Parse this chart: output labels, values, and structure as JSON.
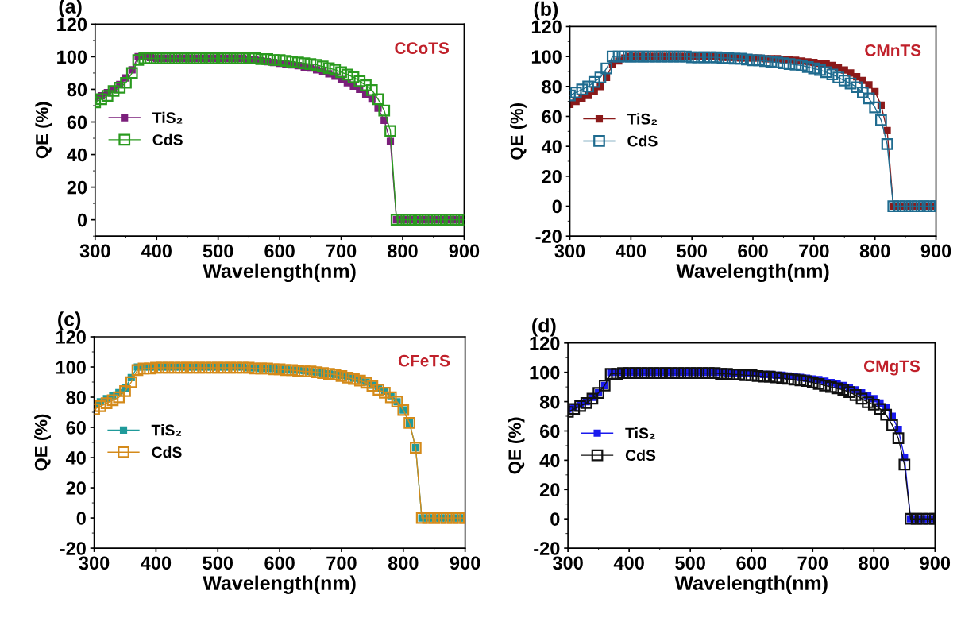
{
  "chart_data": [
    {
      "type": "line",
      "title": "(a)",
      "xlabel": "Wavelength(nm)",
      "ylabel": "QE (%)",
      "annotations": [
        "CCoTS"
      ],
      "x": [
        300,
        310,
        320,
        330,
        340,
        350,
        360,
        370,
        380,
        390,
        400,
        410,
        420,
        430,
        440,
        450,
        460,
        470,
        480,
        490,
        500,
        510,
        520,
        530,
        540,
        550,
        560,
        570,
        580,
        590,
        600,
        610,
        620,
        630,
        640,
        650,
        660,
        670,
        680,
        690,
        700,
        710,
        720,
        730,
        740,
        750,
        760,
        770,
        780,
        790,
        800,
        810,
        820,
        830,
        840,
        850,
        860,
        870,
        880,
        890,
        900
      ],
      "series": [
        {
          "name": "TiS₂",
          "color": "#7b1f7b",
          "values": [
            75,
            76,
            78,
            80,
            83,
            87,
            92,
            100,
            100,
            99.5,
            99,
            99,
            99,
            99,
            99,
            99,
            99,
            99,
            99,
            99,
            99,
            99,
            99,
            99,
            99,
            98.5,
            98,
            97.5,
            97,
            96.5,
            96,
            95.5,
            95,
            94.5,
            93.5,
            93,
            92,
            91,
            89.5,
            88,
            86,
            84,
            82,
            80,
            77,
            74,
            68.5,
            61,
            48,
            0,
            0,
            0,
            0,
            0,
            0,
            0,
            0,
            0,
            0,
            0,
            0
          ]
        },
        {
          "name": "CdS",
          "color": "#2a9a1f",
          "values": [
            72,
            74,
            76,
            79,
            81,
            84,
            90,
            98,
            99,
            99,
            99,
            99,
            99,
            99,
            99,
            99,
            99,
            99,
            99,
            99,
            99,
            99,
            99,
            99,
            99,
            99,
            99,
            98.5,
            98.5,
            98,
            98,
            97.5,
            97,
            96.5,
            96,
            95.5,
            95,
            94,
            93,
            92,
            90.5,
            89,
            87.5,
            85,
            82.5,
            79.5,
            74,
            67,
            54.5,
            0,
            0,
            0,
            0,
            0,
            0,
            0,
            0,
            0,
            0,
            0,
            0
          ]
        }
      ],
      "xlim": [
        300,
        900
      ],
      "xticks": [
        300,
        400,
        500,
        600,
        700,
        800,
        900
      ],
      "ylim": [
        -10,
        120
      ],
      "yticks": [
        0,
        20,
        40,
        60,
        80,
        100,
        120
      ],
      "grid": false,
      "legend": "left",
      "marker": "square",
      "line_style": "solid"
    },
    {
      "type": "line",
      "title": "(b)",
      "xlabel": "Wavelength(nm)",
      "ylabel": "QE (%)",
      "annotations": [
        "CMnTS"
      ],
      "x": [
        300,
        310,
        320,
        330,
        340,
        350,
        360,
        370,
        380,
        390,
        400,
        410,
        420,
        430,
        440,
        450,
        460,
        470,
        480,
        490,
        500,
        510,
        520,
        530,
        540,
        550,
        560,
        570,
        580,
        590,
        600,
        610,
        620,
        630,
        640,
        650,
        660,
        670,
        680,
        690,
        700,
        710,
        720,
        730,
        740,
        750,
        760,
        770,
        780,
        790,
        800,
        810,
        820,
        830,
        840,
        850,
        860,
        870,
        880,
        890,
        900
      ],
      "series": [
        {
          "name": "TiS₂",
          "color": "#8b1a1a",
          "values": [
            68,
            70,
            72,
            74,
            77,
            80,
            86,
            95,
            97,
            99,
            100,
            100,
            100,
            100,
            100,
            100,
            100,
            100,
            100,
            100,
            100,
            100,
            100,
            100,
            100,
            99.5,
            99.5,
            99.5,
            99,
            99,
            99,
            99,
            98.5,
            98.5,
            98.5,
            98,
            98,
            97.5,
            97,
            96.5,
            96,
            95.5,
            95,
            94,
            92.5,
            91,
            89,
            86.5,
            84,
            81,
            76.5,
            67.5,
            50.5,
            0,
            0,
            0,
            0,
            0,
            0,
            0,
            0
          ]
        },
        {
          "name": "CdS",
          "color": "#1f6b8f",
          "values": [
            74,
            76,
            78,
            80,
            83,
            86,
            92,
            100,
            100,
            100,
            100,
            100,
            100,
            100,
            100,
            100,
            100,
            100,
            100,
            100,
            99.5,
            99.5,
            99.5,
            99.5,
            99.5,
            99,
            99,
            98.5,
            98.5,
            98,
            97.5,
            97.5,
            97,
            96.5,
            96,
            95.5,
            95,
            94.5,
            94,
            93,
            92,
            91,
            89.5,
            88,
            86,
            84,
            82,
            79.5,
            76,
            72,
            66,
            57.5,
            41.5,
            0,
            0,
            0,
            0,
            0,
            0,
            0,
            0
          ]
        }
      ],
      "xlim": [
        300,
        900
      ],
      "xticks": [
        300,
        400,
        500,
        600,
        700,
        800,
        900
      ],
      "ylim": [
        -20,
        120
      ],
      "yticks": [
        -20,
        0,
        20,
        40,
        60,
        80,
        100,
        120
      ],
      "grid": false,
      "legend": "left",
      "marker": "square",
      "line_style": "solid"
    },
    {
      "type": "line",
      "title": "(c)",
      "xlabel": "Wavelength(nm)",
      "ylabel": "QE (%)",
      "annotations": [
        "CFeTS"
      ],
      "x": [
        300,
        310,
        320,
        330,
        340,
        350,
        360,
        370,
        380,
        390,
        400,
        410,
        420,
        430,
        440,
        450,
        460,
        470,
        480,
        490,
        500,
        510,
        520,
        530,
        540,
        550,
        560,
        570,
        580,
        590,
        600,
        610,
        620,
        630,
        640,
        650,
        660,
        670,
        680,
        690,
        700,
        710,
        720,
        730,
        740,
        750,
        760,
        770,
        780,
        790,
        800,
        810,
        820,
        830,
        840,
        850,
        860,
        870,
        880,
        890,
        900
      ],
      "series": [
        {
          "name": "TiS₂",
          "color": "#1f9a9a",
          "values": [
            76,
            77,
            79,
            81,
            83,
            86,
            93,
            100,
            100,
            100,
            100,
            100,
            100,
            100,
            100,
            100,
            100,
            100,
            100,
            100,
            100,
            100,
            100,
            100,
            100,
            99.5,
            99.5,
            99,
            99,
            99,
            98.5,
            98.5,
            98,
            98,
            97.5,
            97,
            96.5,
            96,
            95.5,
            95,
            94.5,
            93.5,
            92.5,
            91.5,
            90,
            88,
            86,
            84,
            81,
            77,
            71.5,
            63,
            46.5,
            0,
            0,
            0,
            0,
            0,
            0,
            0,
            0
          ]
        },
        {
          "name": "CdS",
          "color": "#d48a1a",
          "values": [
            72,
            74,
            76,
            78,
            80,
            84,
            90,
            98,
            99,
            99,
            99.5,
            99.5,
            99.5,
            99.5,
            99.5,
            99.5,
            99.5,
            99.5,
            99.5,
            99.5,
            99.5,
            99.5,
            99.5,
            99.5,
            99.5,
            99.5,
            99,
            99,
            99,
            98.5,
            98.5,
            98,
            98,
            97.5,
            97,
            97,
            96.5,
            96,
            95.5,
            95,
            94,
            93,
            92,
            91,
            89.5,
            87.5,
            85,
            83,
            80,
            77,
            71.5,
            63,
            46.5,
            0,
            0,
            0,
            0,
            0,
            0,
            0,
            0
          ]
        }
      ],
      "xlim": [
        300,
        900
      ],
      "xticks": [
        300,
        400,
        500,
        600,
        700,
        800,
        900
      ],
      "ylim": [
        -20,
        120
      ],
      "yticks": [
        -20,
        0,
        20,
        40,
        60,
        80,
        100,
        120
      ],
      "grid": false,
      "legend": "left",
      "marker": "square",
      "line_style": "solid"
    },
    {
      "type": "line",
      "title": "(d)",
      "xlabel": "Wavelength(nm)",
      "ylabel": "QE (%)",
      "annotations": [
        "CMgTS"
      ],
      "x": [
        300,
        310,
        320,
        330,
        340,
        350,
        360,
        370,
        380,
        390,
        400,
        410,
        420,
        430,
        440,
        450,
        460,
        470,
        480,
        490,
        500,
        510,
        520,
        530,
        540,
        550,
        560,
        570,
        580,
        590,
        600,
        610,
        620,
        630,
        640,
        650,
        660,
        670,
        680,
        690,
        700,
        710,
        720,
        730,
        740,
        750,
        760,
        770,
        780,
        790,
        800,
        810,
        820,
        830,
        840,
        850,
        860,
        870,
        880,
        890,
        900
      ],
      "series": [
        {
          "name": "TiS₂",
          "color": "#1a1aee",
          "values": [
            75,
            76,
            78,
            80,
            83,
            86,
            91,
            100,
            100,
            100,
            100,
            100,
            100,
            100,
            100,
            100,
            100,
            100,
            100,
            100,
            100,
            100,
            100,
            100,
            100,
            100,
            99.5,
            99.5,
            99.5,
            99,
            99,
            99,
            98.5,
            98.5,
            98,
            98,
            97.5,
            97,
            96.5,
            96,
            95.5,
            95,
            94,
            93,
            92,
            91,
            89.5,
            88,
            86,
            84,
            82,
            79,
            76,
            70,
            61,
            42,
            0,
            0,
            0,
            0,
            0
          ]
        },
        {
          "name": "CdS",
          "color": "#111111",
          "values": [
            73,
            75,
            77,
            79,
            82,
            86,
            91,
            99,
            99,
            99.5,
            99.5,
            99.5,
            99.5,
            99.5,
            99.5,
            99.5,
            99.5,
            99.5,
            99.5,
            99.5,
            99.5,
            99.5,
            99.5,
            99.5,
            99.5,
            99,
            99,
            98.5,
            98.5,
            98,
            98,
            97.5,
            97,
            97,
            96.5,
            96,
            95.5,
            95,
            94.5,
            94,
            93,
            92,
            91,
            90,
            89,
            88,
            86.5,
            84.5,
            82,
            79.5,
            78,
            75,
            71,
            64,
            55,
            37,
            0,
            0,
            0,
            0,
            0
          ]
        }
      ],
      "xlim": [
        300,
        900
      ],
      "xticks": [
        300,
        400,
        500,
        600,
        700,
        800,
        900
      ],
      "ylim": [
        -20,
        120
      ],
      "yticks": [
        -20,
        0,
        20,
        40,
        60,
        80,
        100,
        120
      ],
      "grid": false,
      "legend": "left",
      "marker": "square",
      "line_style": "solid"
    }
  ]
}
